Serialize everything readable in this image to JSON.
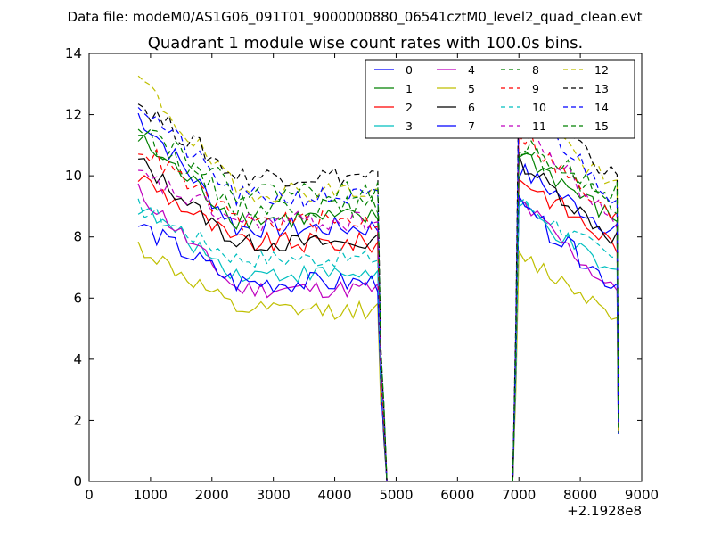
{
  "figure": {
    "suptitle": "Data file: modeM0/AS1G06_091T01_9000000880_06541cztM0_level2_quad_clean.evt",
    "title": "Quadrant 1 module wise count rates with 100.0s bins.",
    "x_offset_label": "+2.1928e8"
  },
  "chart_data": {
    "type": "line",
    "title": "Quadrant 1 module wise count rates with 100.0s bins.",
    "xlabel": "",
    "ylabel": "",
    "xlim": [
      0,
      9000
    ],
    "ylim": [
      0,
      14
    ],
    "x_ticks": [
      0,
      1000,
      2000,
      3000,
      4000,
      5000,
      6000,
      7000,
      8000,
      9000
    ],
    "y_ticks": [
      0,
      2,
      4,
      6,
      8,
      10,
      12,
      14
    ],
    "x_offset": "+2.1928e8",
    "grid": false,
    "legend_position": "top-right",
    "segments": [
      {
        "x_start": 800,
        "x_end": 4700,
        "step": 100
      },
      {
        "x_start": 7000,
        "x_end": 8600,
        "step": 100
      }
    ],
    "gap": {
      "x_points": [
        4750,
        4800,
        4850,
        5000,
        6000,
        6900
      ],
      "y_values": [
        4,
        2,
        0,
        0,
        0,
        0
      ]
    },
    "series": [
      {
        "name": "0",
        "color": "#0000ff",
        "dash": "solid",
        "gap_level": 7.2,
        "seg1_start": 12.0,
        "seg1_level": 8.3,
        "seg2_peak": 10.2,
        "seg2_end": 8.3,
        "noise": 0.35
      },
      {
        "name": "1",
        "color": "#008000",
        "dash": "solid",
        "gap_level": 8.6,
        "seg1_start": 11.2,
        "seg1_level": 8.6,
        "seg2_peak": 10.8,
        "seg2_end": 8.6,
        "noise": 0.35
      },
      {
        "name": "2",
        "color": "#ff0000",
        "dash": "solid",
        "gap_level": 7.8,
        "seg1_start": 10.0,
        "seg1_level": 7.8,
        "seg2_peak": 10.0,
        "seg2_end": 7.8,
        "noise": 0.35
      },
      {
        "name": "3",
        "color": "#00bfbf",
        "dash": "solid",
        "gap_level": 6.8,
        "seg1_start": 9.0,
        "seg1_level": 6.8,
        "seg2_peak": 9.0,
        "seg2_end": 6.8,
        "noise": 0.3
      },
      {
        "name": "4",
        "color": "#bf00bf",
        "dash": "solid",
        "gap_level": 6.3,
        "seg1_start": 9.5,
        "seg1_level": 6.3,
        "seg2_peak": 9.2,
        "seg2_end": 6.3,
        "noise": 0.3
      },
      {
        "name": "5",
        "color": "#bfbf00",
        "dash": "solid",
        "gap_level": 5.6,
        "seg1_start": 7.7,
        "seg1_level": 5.6,
        "seg2_peak": 7.4,
        "seg2_end": 5.6,
        "noise": 0.3
      },
      {
        "name": "6",
        "color": "#000000",
        "dash": "solid",
        "gap_level": 7.8,
        "seg1_start": 10.5,
        "seg1_level": 7.8,
        "seg2_peak": 10.5,
        "seg2_end": 8.0,
        "noise": 0.3
      },
      {
        "name": "7",
        "color": "#0000ff",
        "dash": "solid",
        "gap_level": 7.0,
        "seg1_start": 8.4,
        "seg1_level": 6.5,
        "seg2_peak": 9.0,
        "seg2_end": 6.5,
        "noise": 0.35
      },
      {
        "name": "8",
        "color": "#008000",
        "dash": "dashed",
        "gap_level": 9.0,
        "seg1_start": 11.5,
        "seg1_level": 9.0,
        "seg2_peak": 11.0,
        "seg2_end": 9.0,
        "noise": 0.35
      },
      {
        "name": "9",
        "color": "#ff0000",
        "dash": "dashed",
        "gap_level": 8.5,
        "seg1_start": 11.0,
        "seg1_level": 8.5,
        "seg2_peak": 11.5,
        "seg2_end": 8.6,
        "noise": 0.35
      },
      {
        "name": "10",
        "color": "#00bfbf",
        "dash": "dashed",
        "gap_level": 7.3,
        "seg1_start": 9.0,
        "seg1_level": 7.3,
        "seg2_peak": 9.2,
        "seg2_end": 7.3,
        "noise": 0.3
      },
      {
        "name": "11",
        "color": "#bf00bf",
        "dash": "dashed",
        "gap_level": 8.5,
        "seg1_start": 10.0,
        "seg1_level": 8.5,
        "seg2_peak": 11.8,
        "seg2_end": 8.5,
        "noise": 0.35
      },
      {
        "name": "12",
        "color": "#bfbf00",
        "dash": "dashed",
        "gap_level": 9.5,
        "seg1_start": 13.2,
        "seg1_level": 9.5,
        "seg2_peak": 12.6,
        "seg2_end": 9.6,
        "noise": 0.35
      },
      {
        "name": "13",
        "color": "#000000",
        "dash": "dashed",
        "gap_level": 10.0,
        "seg1_start": 12.4,
        "seg1_level": 10.0,
        "seg2_peak": 13.2,
        "seg2_end": 10.0,
        "noise": 0.35
      },
      {
        "name": "14",
        "color": "#0000ff",
        "dash": "dashed",
        "gap_level": 9.3,
        "seg1_start": 12.4,
        "seg1_level": 9.3,
        "seg2_peak": 12.5,
        "seg2_end": 9.4,
        "noise": 0.35
      },
      {
        "name": "15",
        "color": "#008000",
        "dash": "dashed",
        "gap_level": 9.5,
        "seg1_start": 11.8,
        "seg1_level": 9.5,
        "seg2_peak": 11.0,
        "seg2_end": 9.5,
        "noise": 0.35
      }
    ]
  }
}
